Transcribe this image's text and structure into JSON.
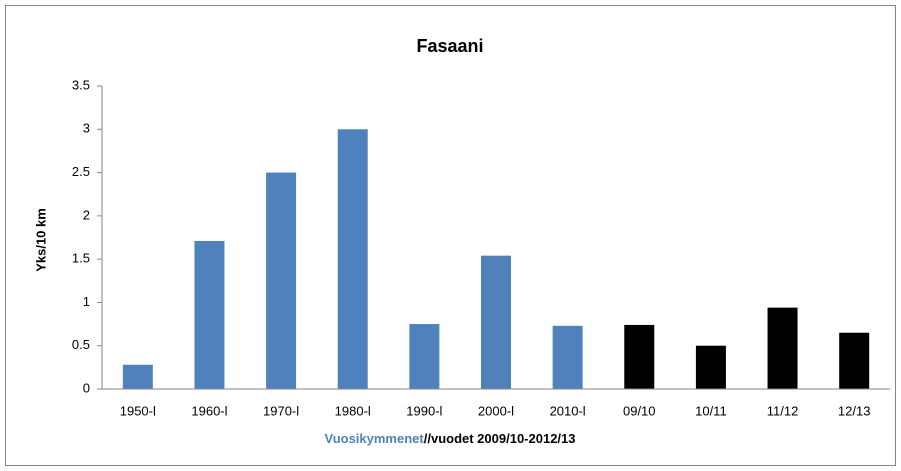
{
  "chart_data": {
    "type": "bar",
    "title": "Fasaani",
    "ylabel": "Yks/10 km",
    "xlabel_parts": [
      {
        "text": "Vuosikymmenet",
        "color": "#4f81bd"
      },
      {
        "text": "//vuodet 2009/10-2012/13",
        "color": "#000000"
      }
    ],
    "categories": [
      "1950-l",
      "1960-l",
      "1970-l",
      "1980-l",
      "1990-l",
      "2000-l",
      "2010-l",
      "09/10",
      "10/11",
      "11/12",
      "12/13"
    ],
    "values": [
      0.28,
      1.71,
      2.5,
      3.0,
      0.75,
      1.54,
      0.73,
      0.74,
      0.5,
      0.94,
      0.65
    ],
    "colors": [
      "#4f81bd",
      "#4f81bd",
      "#4f81bd",
      "#4f81bd",
      "#4f81bd",
      "#4f81bd",
      "#4f81bd",
      "#000000",
      "#000000",
      "#000000",
      "#000000"
    ],
    "ylim": [
      0,
      3.5
    ],
    "yticks": [
      0,
      0.5,
      1,
      1.5,
      2,
      2.5,
      3,
      3.5
    ],
    "grid": false
  }
}
